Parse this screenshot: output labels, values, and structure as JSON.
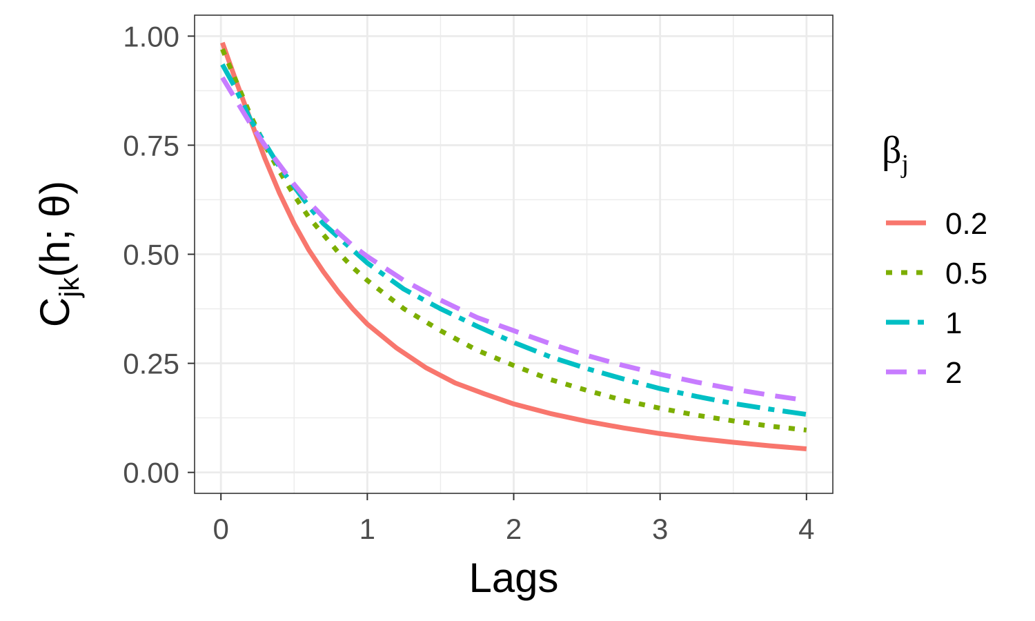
{
  "chart_data": {
    "type": "line",
    "xlabel": "Lags",
    "ylabel": {
      "main": "C",
      "sub": "jk",
      "args": "(h; θ)"
    },
    "xlim": [
      -0.18,
      4.18
    ],
    "ylim": [
      -0.048,
      1.048
    ],
    "x_ticks": [
      "0",
      "1",
      "2",
      "3",
      "4"
    ],
    "y_ticks": [
      "0.00",
      "0.25",
      "0.50",
      "0.75",
      "1.00"
    ],
    "grid": true,
    "legend": {
      "position": "right",
      "title": {
        "main": "β",
        "sub": "j"
      }
    },
    "series": [
      {
        "name": "0.2",
        "color": "#F8766D",
        "dash": "solid",
        "x": [
          0.01,
          0.1,
          0.2,
          0.3,
          0.4,
          0.5,
          0.6,
          0.7,
          0.8,
          0.9,
          1.0,
          1.2,
          1.4,
          1.6,
          1.8,
          2.0,
          2.25,
          2.5,
          2.75,
          3.0,
          3.25,
          3.5,
          3.75,
          4.0
        ],
        "y": [
          0.985,
          0.9,
          0.81,
          0.72,
          0.64,
          0.57,
          0.51,
          0.46,
          0.415,
          0.375,
          0.34,
          0.285,
          0.24,
          0.205,
          0.18,
          0.157,
          0.135,
          0.117,
          0.102,
          0.089,
          0.078,
          0.069,
          0.061,
          0.054
        ]
      },
      {
        "name": "0.5",
        "color": "#7CAE00",
        "dash": "dotted",
        "x": [
          0.01,
          0.1,
          0.2,
          0.3,
          0.4,
          0.5,
          0.6,
          0.7,
          0.8,
          0.9,
          1.0,
          1.25,
          1.5,
          1.75,
          2.0,
          2.25,
          2.5,
          2.75,
          3.0,
          3.25,
          3.5,
          3.75,
          4.0
        ],
        "y": [
          0.97,
          0.9,
          0.82,
          0.75,
          0.69,
          0.635,
          0.585,
          0.545,
          0.505,
          0.47,
          0.44,
          0.375,
          0.325,
          0.28,
          0.245,
          0.213,
          0.188,
          0.165,
          0.147,
          0.131,
          0.118,
          0.106,
          0.097
        ]
      },
      {
        "name": "1",
        "color": "#00BFC4",
        "dash": "dashdot",
        "x": [
          0.01,
          0.1,
          0.2,
          0.3,
          0.4,
          0.5,
          0.6,
          0.7,
          0.8,
          0.9,
          1.0,
          1.25,
          1.5,
          1.75,
          2.0,
          2.25,
          2.5,
          2.75,
          3.0,
          3.25,
          3.5,
          3.75,
          4.0
        ],
        "y": [
          0.935,
          0.88,
          0.81,
          0.755,
          0.7,
          0.655,
          0.61,
          0.57,
          0.54,
          0.51,
          0.48,
          0.42,
          0.375,
          0.335,
          0.298,
          0.265,
          0.238,
          0.214,
          0.192,
          0.174,
          0.158,
          0.145,
          0.133
        ]
      },
      {
        "name": "2",
        "color": "#C77CFF",
        "dash": "dashed",
        "x": [
          0.01,
          0.1,
          0.2,
          0.3,
          0.4,
          0.5,
          0.6,
          0.7,
          0.8,
          0.9,
          1.0,
          1.25,
          1.5,
          1.75,
          2.0,
          2.25,
          2.5,
          2.75,
          3.0,
          3.25,
          3.5,
          3.75,
          4.0
        ],
        "y": [
          0.905,
          0.855,
          0.8,
          0.75,
          0.705,
          0.66,
          0.62,
          0.585,
          0.55,
          0.52,
          0.495,
          0.44,
          0.395,
          0.355,
          0.325,
          0.295,
          0.268,
          0.245,
          0.225,
          0.207,
          0.191,
          0.177,
          0.165
        ]
      }
    ]
  }
}
